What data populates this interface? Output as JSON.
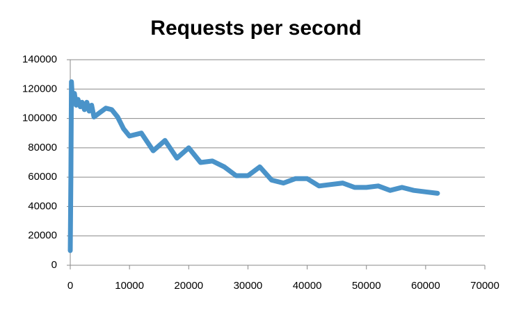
{
  "chart_data": {
    "type": "line",
    "title": "Requests per second",
    "x": [
      0,
      100,
      200,
      400,
      700,
      1000,
      1300,
      1700,
      2000,
      2400,
      2800,
      3200,
      3600,
      4000,
      5000,
      6000,
      7000,
      8000,
      9000,
      10000,
      12000,
      14000,
      16000,
      18000,
      20000,
      22000,
      24000,
      26000,
      28000,
      30000,
      32000,
      34000,
      36000,
      38000,
      40000,
      42000,
      44000,
      46000,
      48000,
      50000,
      52000,
      54000,
      56000,
      58000,
      60000,
      62000
    ],
    "series": [
      {
        "name": "Requests per second",
        "color": "#4a93c9",
        "values": [
          10000,
          60000,
          125000,
          110000,
          117000,
          109000,
          113000,
          108000,
          111000,
          106000,
          111000,
          105000,
          109000,
          101000,
          104000,
          107000,
          106000,
          101000,
          93000,
          88000,
          90000,
          78000,
          85000,
          73000,
          80000,
          70000,
          71000,
          67000,
          61000,
          61000,
          67000,
          58000,
          56000,
          59000,
          59000,
          54000,
          55000,
          56000,
          53000,
          53000,
          54000,
          51000,
          53000,
          51000,
          50000,
          49000
        ]
      }
    ],
    "xlim": [
      0,
      70000
    ],
    "xticks": [
      0,
      10000,
      20000,
      30000,
      40000,
      50000,
      60000,
      70000
    ],
    "ylim": [
      0,
      140000
    ],
    "yticks": [
      0,
      20000,
      40000,
      60000,
      80000,
      100000,
      120000,
      140000
    ],
    "grid": true
  }
}
